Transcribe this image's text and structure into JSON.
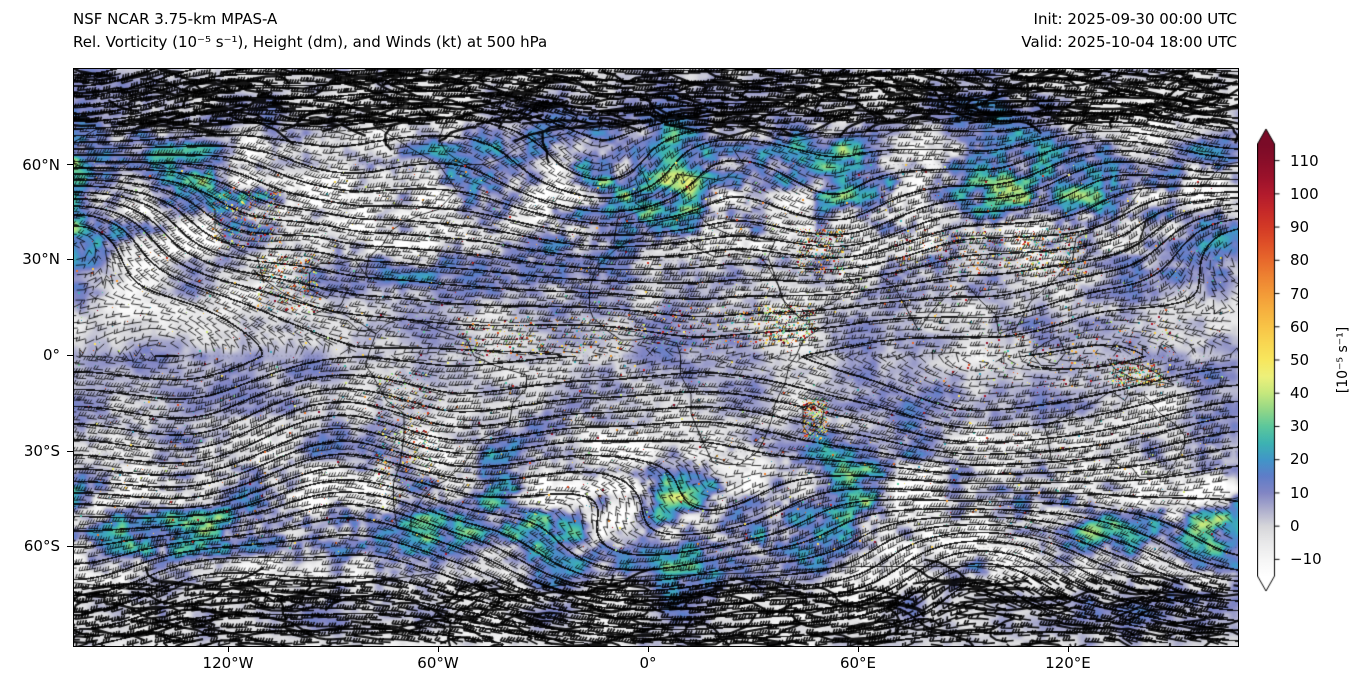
{
  "header": {
    "model_title": "NSF NCAR 3.75-km MPAS-A",
    "field_title": "Rel. Vorticity (10⁻⁵ s⁻¹), Height (dm), and Winds (kt) at 500 hPa",
    "init": "Init: 2025-09-30 00:00 UTC",
    "valid": "Valid: 2025-10-04 18:00 UTC"
  },
  "chart_data": {
    "type": "heatmap",
    "title": "Rel. Vorticity (10⁻⁵ s⁻¹), Height (dm), and Winds (kt) at 500 hPa",
    "model": "NSF NCAR 3.75-km MPAS-A",
    "init_time": "2025-09-30 00:00 UTC",
    "valid_time": "2025-10-04 18:00 UTC",
    "level_hpa": 500,
    "layers": [
      "relative vorticity (color shading, 10⁻⁵ s⁻¹)",
      "geopotential height (black contours, dm)",
      "wind barbs (kt)"
    ],
    "projection": "global equirectangular lat/lon",
    "x_axis": {
      "ticks": [
        "120°W",
        "60°W",
        "0°",
        "60°E",
        "120°E"
      ]
    },
    "y_axis": {
      "ticks": [
        "60°N",
        "30°N",
        "0°",
        "30°S",
        "60°S"
      ]
    },
    "colorbar": {
      "label": "[10⁻⁵ s⁻¹]",
      "tick_labels": [
        "110",
        "100",
        "90",
        "80",
        "70",
        "60",
        "50",
        "40",
        "30",
        "20",
        "10",
        "0",
        "−10"
      ],
      "tick_values": [
        110,
        100,
        90,
        80,
        70,
        60,
        50,
        40,
        30,
        20,
        10,
        0,
        -10
      ],
      "vmin": -15,
      "vmax": 115,
      "extend": "both",
      "stops": [
        {
          "v": -15,
          "color": "#ffffff"
        },
        {
          "v": -10,
          "color": "#f6f6f6"
        },
        {
          "v": -5,
          "color": "#e9e9ea"
        },
        {
          "v": 0,
          "color": "#d6d6da"
        },
        {
          "v": 5,
          "color": "#adaecd"
        },
        {
          "v": 10,
          "color": "#8286c4"
        },
        {
          "v": 15,
          "color": "#5f7dc8"
        },
        {
          "v": 20,
          "color": "#4196c8"
        },
        {
          "v": 25,
          "color": "#3db3b2"
        },
        {
          "v": 30,
          "color": "#5cc79c"
        },
        {
          "v": 35,
          "color": "#93d787"
        },
        {
          "v": 40,
          "color": "#c6e87d"
        },
        {
          "v": 45,
          "color": "#edf17b"
        },
        {
          "v": 50,
          "color": "#f8e75e"
        },
        {
          "v": 55,
          "color": "#f9d752"
        },
        {
          "v": 60,
          "color": "#f8c447"
        },
        {
          "v": 65,
          "color": "#f6b03f"
        },
        {
          "v": 70,
          "color": "#f39a38"
        },
        {
          "v": 75,
          "color": "#ee8332"
        },
        {
          "v": 80,
          "color": "#e8692c"
        },
        {
          "v": 85,
          "color": "#df5028"
        },
        {
          "v": 90,
          "color": "#d33a26"
        },
        {
          "v": 95,
          "color": "#c52929"
        },
        {
          "v": 100,
          "color": "#b21b2d"
        },
        {
          "v": 105,
          "color": "#9b122b"
        },
        {
          "v": 110,
          "color": "#890e29"
        },
        {
          "v": 115,
          "color": "#7a0b27"
        }
      ]
    }
  }
}
